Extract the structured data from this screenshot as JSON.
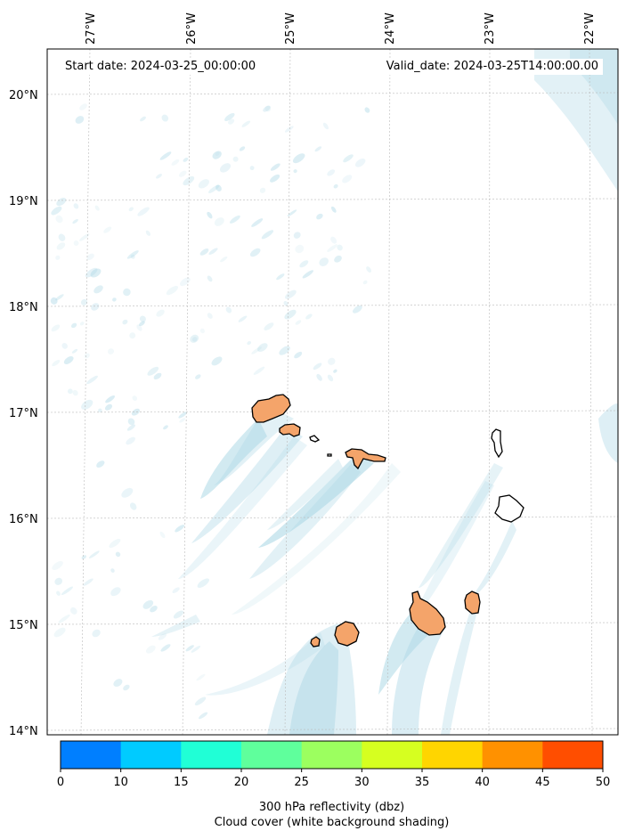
{
  "map": {
    "start_label": "Start date: 2024-03-25_00:00:00",
    "valid_label": "Valid_date: 2024-03-25T14:00:00.00",
    "lon_labels": [
      "27°W",
      "26°W",
      "25°W",
      "24°W",
      "23°W",
      "22°W"
    ],
    "lat_labels": [
      "20°N",
      "19°N",
      "18°N",
      "17°N",
      "16°N",
      "15°N",
      "14°N"
    ],
    "extent": {
      "lon_min": -27.45,
      "lon_max": -21.9,
      "lat_min": 13.95,
      "lat_max": 20.4
    },
    "gridlines": true,
    "land_color": "#f4a46a",
    "cloud_color": "#add8e6",
    "islands": [
      "Santo Antão",
      "São Vicente",
      "Santa Luzia",
      "Branco",
      "Raso",
      "São Nicolau",
      "Sal",
      "Boa Vista",
      "Maio",
      "Santiago",
      "Fogo",
      "Brava"
    ]
  },
  "colorbar": {
    "title": "300 hPa reflectivity (dbz)",
    "subtitle": "Cloud cover (white background shading)",
    "ticks": [
      "0",
      "10",
      "15",
      "20",
      "25",
      "30",
      "35",
      "40",
      "45",
      "50"
    ],
    "colors": [
      "#007fff",
      "#00cbff",
      "#20ffd6",
      "#5fff9c",
      "#9cff5f",
      "#d6ff20",
      "#ffd500",
      "#ff9100",
      "#ff4e00"
    ]
  }
}
